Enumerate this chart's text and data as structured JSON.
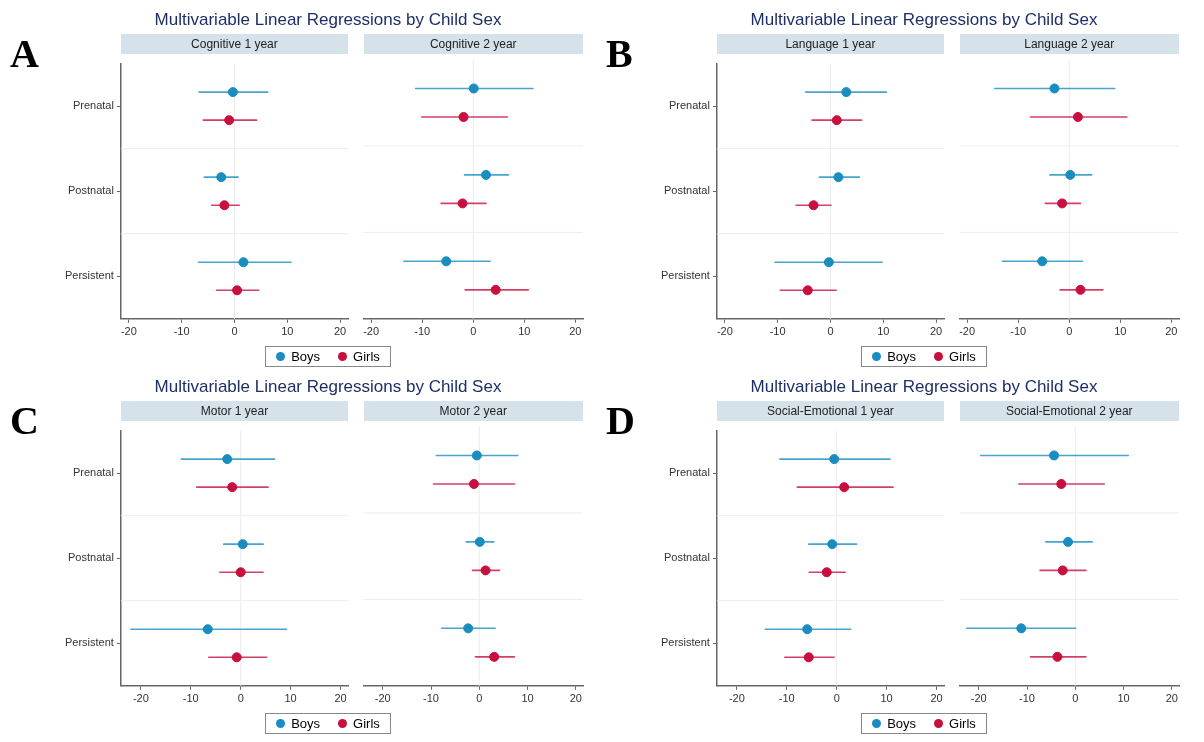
{
  "chart_data": [
    {
      "type": "scatter",
      "orientation": "horizontal",
      "title": "Multivariable Linear Regressions by Child Sex",
      "subtitle": "Cognitive 1 year",
      "annotations": [
        "A"
      ],
      "categories": [
        "Prenatal",
        "Postnatal",
        "Persistent"
      ],
      "xlim": [
        -21.5,
        21.5
      ],
      "xticks": [
        -20,
        -10,
        0,
        10,
        20
      ],
      "legend": "bottom",
      "grid": "y",
      "marker": "circle",
      "ref_lines": [
        {
          "axis": "x",
          "value": 0,
          "color": "#ececec"
        }
      ],
      "series": [
        {
          "name": "Boys",
          "color": "#1a8dc0",
          "values": [
            -0.3,
            -2.5,
            1.7
          ],
          "errors": [
            [
              -6.7,
              6.3
            ],
            [
              -5.7,
              0.7
            ],
            [
              -6.8,
              10.7
            ]
          ]
        },
        {
          "name": "Girls",
          "color": "#c8103e",
          "values": [
            -1.0,
            -1.9,
            0.5
          ],
          "errors": [
            [
              -5.9,
              4.2
            ],
            [
              -4.3,
              0.9
            ],
            [
              -3.4,
              4.6
            ]
          ]
        }
      ]
    },
    {
      "type": "scatter",
      "orientation": "horizontal",
      "subtitle": "Cognitive 2 year",
      "categories": [
        null,
        null,
        null
      ],
      "xlim": [
        -21.5,
        21.5
      ],
      "xticks": [
        -20,
        -10,
        0,
        10,
        20
      ],
      "tick_labels": "x",
      "grid": "y",
      "marker": "circle",
      "ref_lines": [
        {
          "axis": "x",
          "value": 0,
          "color": "#ececec"
        }
      ],
      "series": [
        {
          "color": "#1a8dc0",
          "values": [
            0.1,
            2.5,
            -5.3
          ],
          "errors": [
            [
              -11.3,
              11.7
            ],
            [
              -1.7,
              6.9
            ],
            [
              -13.6,
              3.3
            ]
          ]
        },
        {
          "color": "#c8103e",
          "values": [
            -1.9,
            -2.1,
            4.4
          ],
          "errors": [
            [
              -10.1,
              6.7
            ],
            [
              -6.3,
              2.5
            ],
            [
              -1.6,
              10.8
            ]
          ]
        }
      ]
    },
    {
      "type": "scatter",
      "orientation": "horizontal",
      "title": "Multivariable Linear Regressions by Child Sex",
      "subtitle": "Language 1 year",
      "annotations": [
        "B"
      ],
      "categories": [
        "Prenatal",
        "Postnatal",
        "Persistent"
      ],
      "xlim": [
        -21.5,
        21.5
      ],
      "xticks": [
        -20,
        -10,
        0,
        10,
        20
      ],
      "legend": "bottom",
      "grid": "y",
      "marker": "circle",
      "ref_lines": [
        {
          "axis": "x",
          "value": 0,
          "color": "#ececec"
        }
      ],
      "series": [
        {
          "name": "Boys",
          "color": "#1a8dc0",
          "values": [
            3.0,
            1.5,
            -0.3
          ],
          "errors": [
            [
              -4.7,
              10.6
            ],
            [
              -2.1,
              5.5
            ],
            [
              -10.5,
              9.8
            ]
          ]
        },
        {
          "name": "Girls",
          "color": "#c8103e",
          "values": [
            1.2,
            -3.2,
            -4.3
          ],
          "errors": [
            [
              -3.5,
              5.9
            ],
            [
              -6.5,
              0.1
            ],
            [
              -9.5,
              1.1
            ]
          ]
        }
      ]
    },
    {
      "type": "scatter",
      "orientation": "horizontal",
      "subtitle": "Language 2 year",
      "categories": [
        null,
        null,
        null
      ],
      "xlim": [
        -21.5,
        21.5
      ],
      "xticks": [
        -20,
        -10,
        0,
        10,
        20
      ],
      "tick_labels": "x",
      "grid": "y",
      "marker": "circle",
      "ref_lines": [
        {
          "axis": "x",
          "value": 0,
          "color": "#ececec"
        }
      ],
      "series": [
        {
          "color": "#1a8dc0",
          "values": [
            -2.9,
            0.2,
            -5.3
          ],
          "errors": [
            [
              -14.6,
              8.9
            ],
            [
              -3.8,
              4.4
            ],
            [
              -13.1,
              2.6
            ]
          ]
        },
        {
          "color": "#c8103e",
          "values": [
            1.7,
            -1.4,
            2.2
          ],
          "errors": [
            [
              -7.6,
              11.3
            ],
            [
              -4.7,
              2.2
            ],
            [
              -1.8,
              6.6
            ]
          ]
        }
      ]
    },
    {
      "type": "scatter",
      "orientation": "horizontal",
      "title": "Multivariable Linear Regressions by Child Sex",
      "subtitle": "Motor 1 year",
      "annotations": [
        "C"
      ],
      "categories": [
        "Prenatal",
        "Postnatal",
        "Persistent"
      ],
      "xlim": [
        -24,
        21.5
      ],
      "xticks": [
        -20,
        -10,
        0,
        10,
        20
      ],
      "legend": "bottom",
      "grid": "y",
      "marker": "circle",
      "ref_lines": [
        {
          "axis": "x",
          "value": 0,
          "color": "#ececec"
        }
      ],
      "series": [
        {
          "name": "Boys",
          "color": "#1a8dc0",
          "values": [
            -2.7,
            0.4,
            -6.6
          ],
          "errors": [
            [
              -11.9,
              6.8
            ],
            [
              -3.4,
              4.5
            ],
            [
              -22.0,
              9.2
            ]
          ]
        },
        {
          "name": "Girls",
          "color": "#c8103e",
          "values": [
            -1.7,
            0.0,
            -0.8
          ],
          "errors": [
            [
              -8.8,
              5.5
            ],
            [
              -4.2,
              4.5
            ],
            [
              -6.4,
              5.2
            ]
          ]
        }
      ]
    },
    {
      "type": "scatter",
      "orientation": "horizontal",
      "subtitle": "Motor 2 year",
      "categories": [
        null,
        null,
        null
      ],
      "xlim": [
        -24,
        21.5
      ],
      "xticks": [
        -20,
        -10,
        0,
        10,
        20
      ],
      "tick_labels": "x",
      "grid": "y",
      "marker": "circle",
      "ref_lines": [
        {
          "axis": "x",
          "value": 0,
          "color": "#ececec"
        }
      ],
      "series": [
        {
          "color": "#1a8dc0",
          "values": [
            -0.5,
            0.1,
            -2.3
          ],
          "errors": [
            [
              -8.9,
              8.0
            ],
            [
              -2.7,
              3.0
            ],
            [
              -7.8,
              3.3
            ]
          ]
        },
        {
          "color": "#c8103e",
          "values": [
            -1.1,
            1.3,
            3.1
          ],
          "errors": [
            [
              -9.5,
              7.3
            ],
            [
              -1.4,
              4.2
            ],
            [
              -0.8,
              7.3
            ]
          ]
        }
      ]
    },
    {
      "type": "scatter",
      "orientation": "horizontal",
      "title": "Multivariable Linear Regressions by Child Sex",
      "subtitle": "Social-Emotional 1 year",
      "annotations": [
        "D"
      ],
      "categories": [
        "Prenatal",
        "Postnatal",
        "Persistent"
      ],
      "xlim": [
        -24,
        21.5
      ],
      "xticks": [
        -20,
        -10,
        0,
        10,
        20
      ],
      "legend": "bottom",
      "grid": "y",
      "marker": "circle",
      "ref_lines": [
        {
          "axis": "x",
          "value": 0,
          "color": "#ececec"
        }
      ],
      "series": [
        {
          "name": "Boys",
          "color": "#1a8dc0",
          "values": [
            -0.5,
            -0.9,
            -5.9
          ],
          "errors": [
            [
              -11.4,
              10.7
            ],
            [
              -5.6,
              4.0
            ],
            [
              -14.3,
              2.8
            ]
          ]
        },
        {
          "name": "Girls",
          "color": "#c8103e",
          "values": [
            1.5,
            -2.0,
            -5.6
          ],
          "errors": [
            [
              -7.9,
              11.3
            ],
            [
              -5.5,
              1.7
            ],
            [
              -10.4,
              -0.5
            ]
          ]
        }
      ]
    },
    {
      "type": "scatter",
      "orientation": "horizontal",
      "subtitle": "Social-Emotional 2 year",
      "categories": [
        null,
        null,
        null
      ],
      "xlim": [
        -24,
        21.5
      ],
      "xticks": [
        -20,
        -10,
        0,
        10,
        20
      ],
      "tick_labels": "x",
      "grid": "y",
      "marker": "circle",
      "ref_lines": [
        {
          "axis": "x",
          "value": 0,
          "color": "#ececec"
        }
      ],
      "series": [
        {
          "color": "#1a8dc0",
          "values": [
            -4.4,
            -1.5,
            -11.2
          ],
          "errors": [
            [
              -19.6,
              11.0
            ],
            [
              -6.1,
              3.5
            ],
            [
              -22.5,
              0.1
            ]
          ]
        },
        {
          "color": "#c8103e",
          "values": [
            -2.9,
            -2.6,
            -3.7
          ],
          "errors": [
            [
              -11.7,
              6.0
            ],
            [
              -7.3,
              2.2
            ],
            [
              -9.3,
              2.2
            ]
          ]
        }
      ]
    }
  ]
}
